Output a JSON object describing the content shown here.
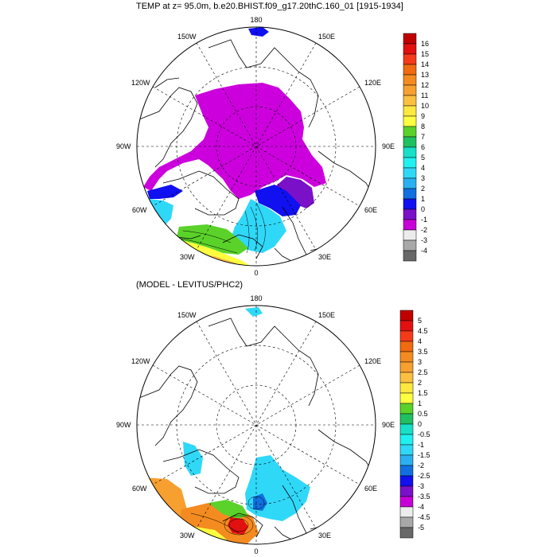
{
  "panels": [
    {
      "title": "TEMP at z=  95.0m, b.e20.BHIST.f09_g17.20thC.160_01 [1915-1934]",
      "lon_labels": {
        "top": "180",
        "bottom": "0",
        "left": "90W",
        "right": "90E",
        "ul": "150W",
        "ur": "150E",
        "ul2": "120W",
        "ur2": "120E",
        "ll": "60W",
        "lr": "60E",
        "ll2": "30W",
        "lr2": "30E"
      },
      "colorbar": {
        "labels": [
          "16",
          "15",
          "14",
          "13",
          "12",
          "11",
          "10",
          "9",
          "8",
          "7",
          "6",
          "5",
          "4",
          "3",
          "2",
          "1",
          "0",
          "-1",
          "-2",
          "-3",
          "-4"
        ],
        "colors": [
          "#c00000",
          "#e21010",
          "#f53a1a",
          "#f06a10",
          "#f48b20",
          "#f7a030",
          "#fcc040",
          "#ffe840",
          "#ffff40",
          "#5ad22a",
          "#20c060",
          "#18e0c8",
          "#20f0f0",
          "#30d8f8",
          "#2ab0f0",
          "#1070e0",
          "#1010f0",
          "#7a10c8",
          "#c800d8",
          "#ececec",
          "#a8a8a8",
          "#686868"
        ]
      }
    },
    {
      "title": "(MODEL - LEVITUS/PHC2)",
      "lon_labels": {
        "top": "180",
        "bottom": "0",
        "left": "90W",
        "right": "90E",
        "ul": "150W",
        "ur": "150E",
        "ul2": "120W",
        "ur2": "120E",
        "ll": "60W",
        "lr": "60E",
        "ll2": "30W",
        "lr2": "30E"
      },
      "colorbar": {
        "labels": [
          "5",
          "4.5",
          "4",
          "3.5",
          "3",
          "2.5",
          "2",
          "1.5",
          "1",
          "0.5",
          "0",
          "-0.5",
          "-1",
          "-1.5",
          "-2",
          "-2.5",
          "-3",
          "-3.5",
          "-4",
          "-4.5",
          "-5"
        ],
        "colors": [
          "#c00000",
          "#e21010",
          "#f53a1a",
          "#f06a10",
          "#f48b20",
          "#f7a030",
          "#fcc040",
          "#ffe840",
          "#ffff40",
          "#5ad22a",
          "#20c060",
          "#18e0c8",
          "#20f0f0",
          "#30d8f8",
          "#2ab0f0",
          "#1070e0",
          "#1010f0",
          "#7a10c8",
          "#c800d8",
          "#ececec",
          "#a8a8a8",
          "#686868"
        ]
      }
    }
  ],
  "colors": {
    "magenta": "#cc00dd",
    "purple": "#7a10c8",
    "blue": "#1010f0",
    "cyan": "#20f0f0",
    "light_blue": "#30d8f8",
    "green": "#5ad22a",
    "yellow": "#ffff40",
    "orange": "#f48b20",
    "red": "#e21010",
    "land_line": "#000000"
  }
}
